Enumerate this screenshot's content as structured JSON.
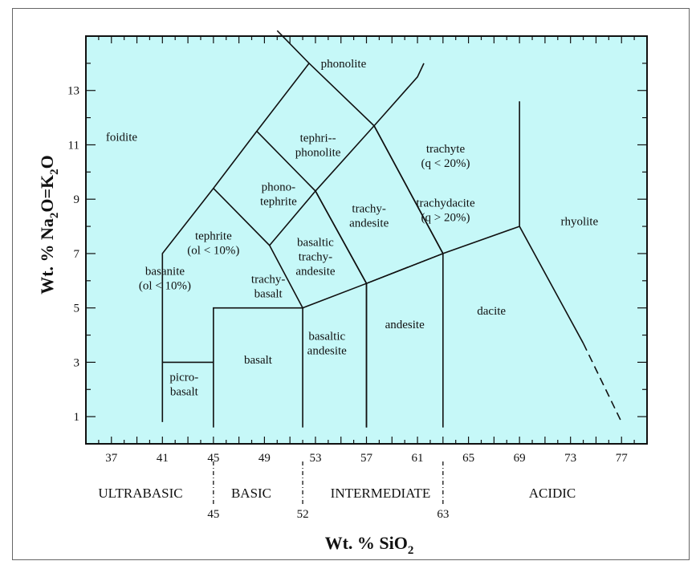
{
  "diagram": {
    "background_color": "#c6f8f8",
    "line_color": "#111111",
    "x_axis": {
      "label_main": "Wt. % SiO",
      "label_sub": "2",
      "range": [
        35,
        79
      ],
      "ticks": [
        "37",
        "41",
        "45",
        "49",
        "53",
        "57",
        "61",
        "65",
        "69",
        "73",
        "77"
      ]
    },
    "y_axis": {
      "label_a": "Wt. % Na",
      "label_sub1": "2",
      "label_b": "O=K",
      "label_sub2": "2",
      "label_c": "O",
      "range": [
        0,
        15
      ],
      "ticks": [
        "1",
        "3",
        "5",
        "7",
        "9",
        "11",
        "13"
      ]
    },
    "fields": [
      {
        "name": "phonolite",
        "lines": [
          "phonolite"
        ]
      },
      {
        "name": "tephriphonolite",
        "lines": [
          "tephri--",
          "phonolite"
        ]
      },
      {
        "name": "foidite",
        "lines": [
          "foidite"
        ]
      },
      {
        "name": "trachyte",
        "lines": [
          "trachyte",
          "(q < 20%)"
        ]
      },
      {
        "name": "phonotephrite",
        "lines": [
          "phono-",
          "tephrite"
        ]
      },
      {
        "name": "trachydacite",
        "lines": [
          "trachydacite",
          "(q > 20%)"
        ]
      },
      {
        "name": "trachyandesite",
        "lines": [
          "trachy-",
          "andesite"
        ]
      },
      {
        "name": "rhyolite",
        "lines": [
          "rhyolite"
        ]
      },
      {
        "name": "tephrite",
        "lines": [
          "tephrite",
          "(ol < 10%)"
        ]
      },
      {
        "name": "basaltic-trachyandesite",
        "lines": [
          "basaltic",
          "trachy-",
          "andesite"
        ]
      },
      {
        "name": "basanite",
        "lines": [
          "basanite",
          "(ol < 10%)"
        ]
      },
      {
        "name": "trachybasalt",
        "lines": [
          "trachy-",
          "basalt"
        ]
      },
      {
        "name": "andesite",
        "lines": [
          "andesite"
        ]
      },
      {
        "name": "dacite",
        "lines": [
          "dacite"
        ]
      },
      {
        "name": "basalt",
        "lines": [
          "basalt"
        ]
      },
      {
        "name": "basaltic-andesite",
        "lines": [
          "basaltic",
          "andesite"
        ]
      },
      {
        "name": "picrobasalt",
        "lines": [
          "picro-",
          "basalt"
        ]
      }
    ],
    "classes": [
      {
        "label": "ULTRABASIC"
      },
      {
        "label": "BASIC"
      },
      {
        "label": "INTERMEDIATE"
      },
      {
        "label": "ACIDIC"
      }
    ],
    "boundaries": [
      {
        "value": "45"
      },
      {
        "value": "52"
      },
      {
        "value": "63"
      }
    ],
    "lines": [
      [
        [
          41,
          0.8
        ],
        [
          41,
          7
        ],
        [
          45,
          9.4
        ],
        [
          48.4,
          11.5
        ],
        [
          52.5,
          14
        ]
      ],
      [
        [
          50,
          15.2
        ],
        [
          52.5,
          14
        ],
        [
          57.6,
          11.7
        ],
        [
          63,
          7
        ],
        [
          69,
          8
        ],
        [
          69,
          12.6
        ]
      ],
      [
        [
          45,
          9.4
        ],
        [
          49.4,
          7.3
        ],
        [
          52,
          5
        ],
        [
          45,
          5
        ],
        [
          45,
          0.6
        ]
      ],
      [
        [
          41,
          3
        ],
        [
          45,
          3
        ]
      ],
      [
        [
          49.4,
          7.3
        ],
        [
          53,
          9.3
        ],
        [
          57.6,
          11.7
        ],
        [
          61,
          13.5
        ],
        [
          61.5,
          14
        ]
      ],
      [
        [
          48.4,
          11.5
        ],
        [
          53,
          9.3
        ],
        [
          57,
          5.9
        ],
        [
          63,
          7
        ]
      ],
      [
        [
          52,
          5
        ],
        [
          52,
          0.6
        ]
      ],
      [
        [
          57,
          5.9
        ],
        [
          57,
          0.6
        ]
      ],
      [
        [
          63,
          7
        ],
        [
          63,
          0.6
        ]
      ],
      [
        [
          53,
          9.3
        ],
        [
          57,
          5.9
        ]
      ],
      [
        [
          52,
          5
        ],
        [
          57,
          5.9
        ],
        [
          63,
          7
        ]
      ],
      [
        [
          57,
          5.9
        ],
        [
          57,
          0.6
        ]
      ],
      [
        [
          57.6,
          11.7
        ],
        [
          63,
          7
        ]
      ],
      [
        [
          69,
          8
        ],
        [
          74,
          3.7
        ]
      ]
    ]
  }
}
